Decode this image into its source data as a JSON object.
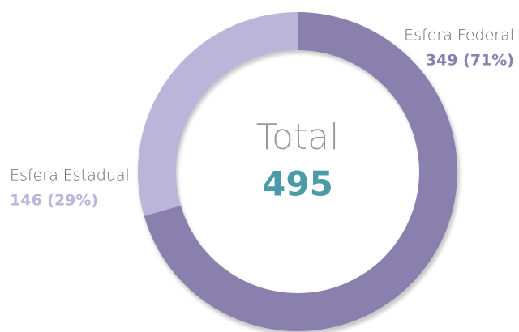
{
  "chart_data": {
    "type": "pie",
    "categories": [
      "Esfera Federal",
      "Esfera Estadual"
    ],
    "values": [
      349,
      146
    ],
    "value_labels": [
      "349 (71%)",
      "146 (29%)"
    ],
    "colors": [
      "#8a80ad",
      "#bcb5da"
    ],
    "center_label": "Total",
    "total": 495,
    "total_color": "#4a9aa8"
  }
}
